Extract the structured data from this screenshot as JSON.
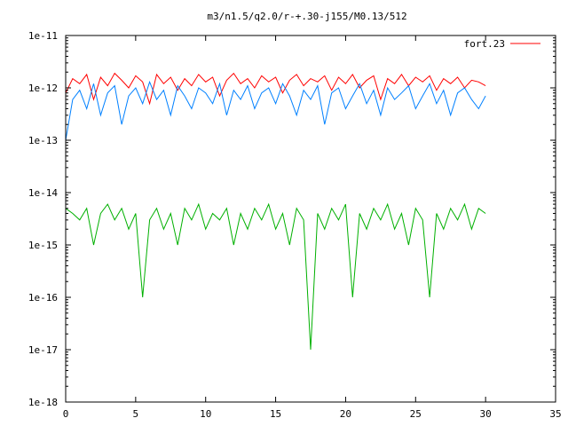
{
  "chart_data": {
    "type": "line",
    "title": "m3/n1.5/q2.0/r-+.30-j155/M0.13/512",
    "xlabel": "",
    "ylabel": "",
    "x_scale": "linear",
    "y_scale": "log",
    "xlim": [
      0,
      35
    ],
    "ylim": [
      1e-18,
      1e-11
    ],
    "x_ticks": [
      0,
      5,
      10,
      15,
      20,
      25,
      30,
      35
    ],
    "x_tick_labels": [
      "0",
      "5",
      "10",
      "15",
      "20",
      "25",
      "30",
      "35"
    ],
    "y_ticks": [
      1e-18,
      1e-17,
      1e-16,
      1e-15,
      1e-14,
      1e-13,
      1e-12,
      1e-11
    ],
    "y_tick_labels": [
      "1e-18",
      "1e-17",
      "1e-16",
      "1e-15",
      "1e-14",
      "1e-13",
      "1e-12",
      "1e-11"
    ],
    "grid": false,
    "legend_position": "top-right",
    "legend": [
      {
        "label": "fort.23",
        "color": "#ff0000"
      }
    ],
    "series": [
      {
        "name": "fort.23",
        "color": "#ff0000",
        "x": [
          0.0,
          0.5,
          1.0,
          1.5,
          2.0,
          2.5,
          3.0,
          3.5,
          4.0,
          4.5,
          5.0,
          5.5,
          6.0,
          6.5,
          7.0,
          7.5,
          8.0,
          8.5,
          9.0,
          9.5,
          10.0,
          10.5,
          11.0,
          11.5,
          12.0,
          12.5,
          13.0,
          13.5,
          14.0,
          14.5,
          15.0,
          15.5,
          16.0,
          16.5,
          17.0,
          17.5,
          18.0,
          18.5,
          19.0,
          19.5,
          20.0,
          20.5,
          21.0,
          21.5,
          22.0,
          22.5,
          23.0,
          23.5,
          24.0,
          24.5,
          25.0,
          25.5,
          26.0,
          26.5,
          27.0,
          27.5,
          28.0,
          28.5,
          29.0,
          29.5,
          30.0
        ],
        "y": [
          8e-13,
          1.5e-12,
          1.2e-12,
          1.8e-12,
          6e-13,
          1.6e-12,
          1.1e-12,
          1.9e-12,
          1.4e-12,
          1e-12,
          1.7e-12,
          1.3e-12,
          5e-13,
          1.8e-12,
          1.2e-12,
          1.6e-12,
          9e-13,
          1.5e-12,
          1.1e-12,
          1.8e-12,
          1.3e-12,
          1.6e-12,
          7e-13,
          1.4e-12,
          1.9e-12,
          1.2e-12,
          1.5e-12,
          1e-12,
          1.7e-12,
          1.3e-12,
          1.6e-12,
          8e-13,
          1.4e-12,
          1.8e-12,
          1.1e-12,
          1.5e-12,
          1.3e-12,
          1.7e-12,
          9e-13,
          1.6e-12,
          1.2e-12,
          1.8e-12,
          1e-12,
          1.4e-12,
          1.7e-12,
          6e-13,
          1.5e-12,
          1.2e-12,
          1.8e-12,
          1.1e-12,
          1.6e-12,
          1.3e-12,
          1.7e-12,
          9e-13,
          1.5e-12,
          1.2e-12,
          1.6e-12,
          1e-12,
          1.4e-12,
          1.3e-12,
          1.1e-12
        ]
      },
      {
        "color": "#0080ff",
        "x": [
          0.0,
          0.5,
          1.0,
          1.5,
          2.0,
          2.5,
          3.0,
          3.5,
          4.0,
          4.5,
          5.0,
          5.5,
          6.0,
          6.5,
          7.0,
          7.5,
          8.0,
          8.5,
          9.0,
          9.5,
          10.0,
          10.5,
          11.0,
          11.5,
          12.0,
          12.5,
          13.0,
          13.5,
          14.0,
          14.5,
          15.0,
          15.5,
          16.0,
          16.5,
          17.0,
          17.5,
          18.0,
          18.5,
          19.0,
          19.5,
          20.0,
          20.5,
          21.0,
          21.5,
          22.0,
          22.5,
          23.0,
          23.5,
          24.0,
          24.5,
          25.0,
          25.5,
          26.0,
          26.5,
          27.0,
          27.5,
          28.0,
          28.5,
          29.0,
          29.5,
          30.0
        ],
        "y": [
          1e-13,
          6e-13,
          9e-13,
          4e-13,
          1.2e-12,
          3e-13,
          8e-13,
          1.1e-12,
          2e-13,
          7e-13,
          1e-12,
          5e-13,
          1.3e-12,
          6e-13,
          9e-13,
          3e-13,
          1.1e-12,
          7e-13,
          4e-13,
          1e-12,
          8e-13,
          5e-13,
          1.2e-12,
          3e-13,
          9e-13,
          6e-13,
          1.1e-12,
          4e-13,
          8e-13,
          1e-12,
          5e-13,
          1.2e-12,
          7e-13,
          3e-13,
          9e-13,
          6e-13,
          1.1e-12,
          2e-13,
          8e-13,
          1e-12,
          4e-13,
          7e-13,
          1.2e-12,
          5e-13,
          9e-13,
          3e-13,
          1e-12,
          6e-13,
          8e-13,
          1.1e-12,
          4e-13,
          7e-13,
          1.2e-12,
          5e-13,
          9e-13,
          3e-13,
          8e-13,
          1e-12,
          6e-13,
          4e-13,
          7e-13
        ]
      },
      {
        "color": "#00b000",
        "x": [
          0.0,
          0.5,
          1.0,
          1.5,
          2.0,
          2.5,
          3.0,
          3.5,
          4.0,
          4.5,
          5.0,
          5.5,
          6.0,
          6.5,
          7.0,
          7.5,
          8.0,
          8.5,
          9.0,
          9.5,
          10.0,
          10.5,
          11.0,
          11.5,
          12.0,
          12.5,
          13.0,
          13.5,
          14.0,
          14.5,
          15.0,
          15.5,
          16.0,
          16.5,
          17.0,
          17.5,
          18.0,
          18.5,
          19.0,
          19.5,
          20.0,
          20.5,
          21.0,
          21.5,
          22.0,
          22.5,
          23.0,
          23.5,
          24.0,
          24.5,
          25.0,
          25.5,
          26.0,
          26.5,
          27.0,
          27.5,
          28.0,
          28.5,
          29.0,
          29.5,
          30.0
        ],
        "y": [
          5e-15,
          4e-15,
          3e-15,
          5e-15,
          1e-15,
          4e-15,
          6e-15,
          3e-15,
          5e-15,
          2e-15,
          4e-15,
          1e-16,
          3e-15,
          5e-15,
          2e-15,
          4e-15,
          1e-15,
          5e-15,
          3e-15,
          6e-15,
          2e-15,
          4e-15,
          3e-15,
          5e-15,
          1e-15,
          4e-15,
          2e-15,
          5e-15,
          3e-15,
          6e-15,
          2e-15,
          4e-15,
          1e-15,
          5e-15,
          3e-15,
          1e-17,
          4e-15,
          2e-15,
          5e-15,
          3e-15,
          6e-15,
          1e-16,
          4e-15,
          2e-15,
          5e-15,
          3e-15,
          6e-15,
          2e-15,
          4e-15,
          1e-15,
          5e-15,
          3e-15,
          1e-16,
          4e-15,
          2e-15,
          5e-15,
          3e-15,
          6e-15,
          2e-15,
          5e-15,
          4e-15
        ]
      }
    ]
  }
}
